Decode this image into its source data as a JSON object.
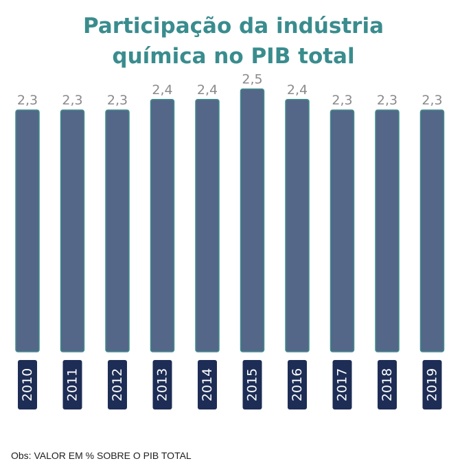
{
  "chart_data": {
    "type": "bar",
    "title_lines": [
      "Participação da indústria",
      "química no PIB total"
    ],
    "categories": [
      "2010",
      "2011",
      "2012",
      "2013",
      "2014",
      "2015",
      "2016",
      "2017",
      "2018",
      "2019"
    ],
    "values": [
      2.3,
      2.3,
      2.3,
      2.4,
      2.4,
      2.5,
      2.4,
      2.3,
      2.3,
      2.3
    ],
    "value_labels": [
      "2,3",
      "2,3",
      "2,3",
      "2,4",
      "2,4",
      "2,5",
      "2,4",
      "2,3",
      "2,3",
      "2,3"
    ],
    "xlabel": "",
    "ylabel": "",
    "grid": false,
    "legend": "none",
    "colors": {
      "bar": "#546788",
      "bar_outline": "#3f8f8c",
      "year_badge": "#1d2d55",
      "year_text": "#ffffff",
      "value_label": "#8a8a8a",
      "title": "#3a8c8e"
    }
  },
  "footnote": "Obs: VALOR EM % SOBRE O PIB TOTAL"
}
